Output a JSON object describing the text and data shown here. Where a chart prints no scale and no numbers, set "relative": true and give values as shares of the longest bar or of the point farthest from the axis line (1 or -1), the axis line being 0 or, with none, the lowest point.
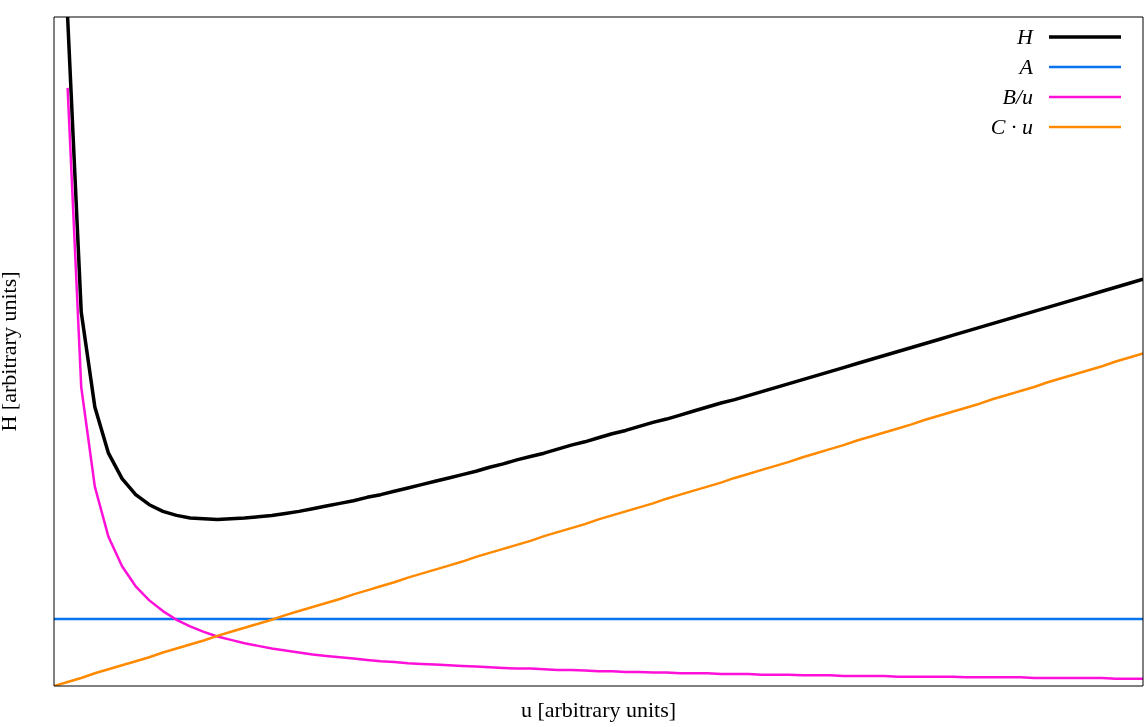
{
  "chart_data": {
    "type": "line",
    "relative": true,
    "xlabel": "u [arbitrary units]",
    "ylabel": "H [arbitrary units]",
    "legend": "top right",
    "grid": false,
    "marker": "none",
    "line_style": "solid",
    "categories": [
      null,
      null,
      null,
      null,
      null,
      null,
      null,
      null,
      null,
      null,
      null,
      null,
      null,
      null,
      null,
      null,
      null,
      null,
      null,
      null,
      null,
      null,
      null,
      null,
      null,
      null,
      null,
      null,
      null,
      null,
      null,
      null,
      null,
      null,
      null,
      null,
      null,
      null,
      null,
      null,
      null,
      null,
      null,
      null,
      null,
      null,
      null,
      null,
      null,
      null,
      null,
      null,
      null,
      null,
      null,
      null,
      null,
      null,
      null,
      null,
      null,
      null,
      null,
      null,
      null,
      null,
      null,
      null,
      null,
      null,
      null,
      null,
      null,
      null,
      null,
      null,
      null,
      null,
      null,
      null,
      null
    ],
    "series": [
      {
        "name": "H",
        "color": "#000000",
        "values": [
          null,
          1.0,
          0.559,
          0.417,
          0.348,
          0.31,
          0.286,
          0.271,
          0.261,
          0.255,
          0.251,
          0.25,
          0.249,
          0.25,
          0.251,
          0.253,
          0.255,
          0.258,
          0.261,
          0.265,
          0.269,
          0.273,
          0.277,
          0.282,
          0.286,
          0.291,
          0.296,
          0.301,
          0.306,
          0.311,
          0.316,
          0.321,
          0.327,
          0.332,
          0.338,
          0.343,
          0.348,
          0.354,
          0.36,
          0.365,
          0.371,
          0.377,
          0.382,
          0.388,
          0.394,
          0.399,
          0.405,
          0.411,
          0.417,
          0.423,
          0.428,
          0.434,
          0.44,
          0.446,
          0.452,
          0.458,
          0.464,
          0.47,
          0.476,
          0.482,
          0.488,
          0.494,
          0.5,
          0.506,
          0.512,
          0.518,
          0.524,
          0.53,
          0.536,
          0.542,
          0.548,
          0.554,
          0.56,
          0.566,
          0.572,
          0.578,
          0.584,
          0.59,
          0.596,
          0.602,
          0.608
        ]
      },
      {
        "name": "A",
        "color": "#0a74f0",
        "values": [
          0.1,
          0.1,
          0.1,
          0.1,
          0.1,
          0.1,
          0.1,
          0.1,
          0.1,
          0.1,
          0.1,
          0.1,
          0.1,
          0.1,
          0.1,
          0.1,
          0.1,
          0.1,
          0.1,
          0.1,
          0.1,
          0.1,
          0.1,
          0.1,
          0.1,
          0.1,
          0.1,
          0.1,
          0.1,
          0.1,
          0.1,
          0.1,
          0.1,
          0.1,
          0.1,
          0.1,
          0.1,
          0.1,
          0.1,
          0.1,
          0.1,
          0.1,
          0.1,
          0.1,
          0.1,
          0.1,
          0.1,
          0.1,
          0.1,
          0.1,
          0.1,
          0.1,
          0.1,
          0.1,
          0.1,
          0.1,
          0.1,
          0.1,
          0.1,
          0.1,
          0.1,
          0.1,
          0.1,
          0.1,
          0.1,
          0.1,
          0.1,
          0.1,
          0.1,
          0.1,
          0.1,
          0.1,
          0.1,
          0.1,
          0.1,
          0.1,
          0.1,
          0.1,
          0.1,
          0.1,
          0.1
        ]
      },
      {
        "name": "B/u",
        "color": "#ff10d8",
        "values": [
          null,
          0.894,
          0.447,
          0.298,
          0.223,
          0.179,
          0.149,
          0.128,
          0.112,
          0.099,
          0.089,
          0.081,
          0.074,
          0.069,
          0.064,
          0.06,
          0.056,
          0.053,
          0.05,
          0.047,
          0.045,
          0.043,
          0.041,
          0.039,
          0.037,
          0.036,
          0.034,
          0.033,
          0.032,
          0.031,
          0.03,
          0.029,
          0.028,
          0.027,
          0.026,
          0.026,
          0.025,
          0.024,
          0.024,
          0.023,
          0.022,
          0.022,
          0.021,
          0.021,
          0.02,
          0.02,
          0.019,
          0.019,
          0.019,
          0.018,
          0.018,
          0.018,
          0.017,
          0.017,
          0.017,
          0.016,
          0.016,
          0.016,
          0.015,
          0.015,
          0.015,
          0.015,
          0.014,
          0.014,
          0.014,
          0.014,
          0.014,
          0.013,
          0.013,
          0.013,
          0.013,
          0.013,
          0.012,
          0.012,
          0.012,
          0.012,
          0.012,
          0.012,
          0.011,
          0.011,
          0.011
        ]
      },
      {
        "name": "C · u",
        "color": "#ff8a00",
        "values": [
          0,
          0.006,
          0.012,
          0.019,
          0.025,
          0.031,
          0.037,
          0.043,
          0.05,
          0.056,
          0.062,
          0.068,
          0.075,
          0.081,
          0.087,
          0.093,
          0.099,
          0.106,
          0.112,
          0.118,
          0.124,
          0.13,
          0.137,
          0.143,
          0.149,
          0.155,
          0.162,
          0.168,
          0.174,
          0.18,
          0.186,
          0.193,
          0.199,
          0.205,
          0.211,
          0.217,
          0.224,
          0.23,
          0.236,
          0.242,
          0.249,
          0.255,
          0.261,
          0.267,
          0.273,
          0.28,
          0.286,
          0.292,
          0.298,
          0.304,
          0.311,
          0.317,
          0.323,
          0.329,
          0.335,
          0.342,
          0.348,
          0.354,
          0.36,
          0.367,
          0.373,
          0.379,
          0.385,
          0.391,
          0.398,
          0.404,
          0.41,
          0.416,
          0.422,
          0.429,
          0.435,
          0.441,
          0.447,
          0.454,
          0.46,
          0.466,
          0.472,
          0.478,
          0.485,
          0.491,
          0.497
        ]
      }
    ]
  }
}
